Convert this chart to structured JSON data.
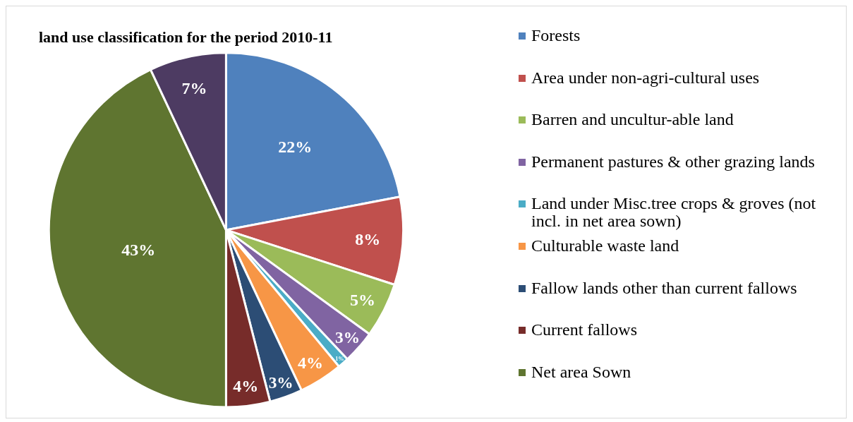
{
  "chart_data": {
    "type": "pie",
    "title": "land use classification for the period 2010-11",
    "categories": [
      "Forests",
      "Area under non-agri-cultural uses",
      "Barren and uncultur-able land",
      "Permanent pastures & other grazing lands",
      "Land under Misc.tree crops & groves (not incl. in net area sown)",
      "Culturable waste land",
      "Fallow lands other than current fallows",
      "Current fallows",
      "Net area Sown",
      null
    ],
    "values": [
      22,
      8,
      5,
      3,
      1,
      4,
      3,
      4,
      43,
      7
    ],
    "value_labels": [
      "22%",
      "8%",
      "5%",
      "3%",
      "1%",
      "4%",
      "3%",
      "4%",
      "43%",
      "7%"
    ],
    "colors": [
      "#4f81bd",
      "#c0504d",
      "#9bbb59",
      "#8064a2",
      "#4bacc6",
      "#f79646",
      "#2c4d75",
      "#772c2a",
      "#5f7530",
      "#4d3b62"
    ],
    "legend": "right"
  }
}
